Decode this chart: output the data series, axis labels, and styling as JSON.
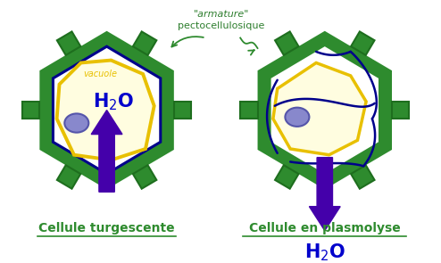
{
  "bg_color": "#ffffff",
  "cell_wall_color": "#2e8b2e",
  "cell_wall_dark": "#1e6e1e",
  "vacuole_fill": "#fffde0",
  "vacuole_border_yellow": "#e8c000",
  "membrane_blue": "#00008b",
  "cytoplasm_fill": "#fffde0",
  "arrow_color": "#4400aa",
  "nucleus_fill": "#8888cc",
  "nucleus_border": "#5555aa",
  "h2o_color": "#0000cc",
  "label_color": "#2e8b2e",
  "title_left": "Cellule turgescente",
  "title_right": "Cellule en plasmolyse",
  "armature_text1": "\"armature\"",
  "armature_text2": "pectocellulosique",
  "vacuole_label": "vacuole",
  "figsize": [
    4.94,
    2.95
  ],
  "dpi": 100
}
